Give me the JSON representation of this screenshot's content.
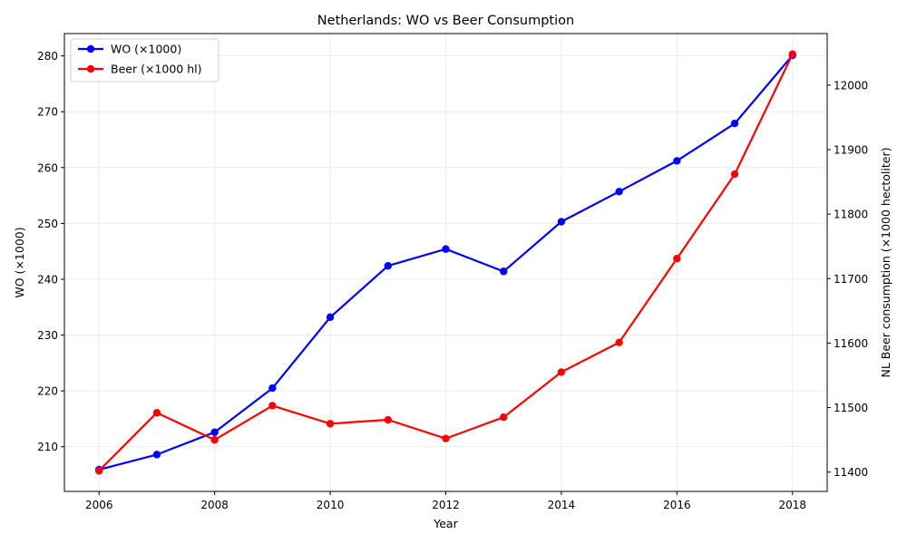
{
  "chart_data": {
    "type": "line",
    "title": "Netherlands: WO vs Beer Consumption",
    "xlabel": "Year",
    "ylabel_left": "WO (×1000)",
    "ylabel_right": "NL Beer consumption (×1000 hectoliter)",
    "xlim": [
      2005.4,
      2018.6
    ],
    "ylim_left": [
      202,
      284
    ],
    "ylim_right": [
      11370,
      12080
    ],
    "x_ticks": [
      2006,
      2008,
      2010,
      2012,
      2014,
      2016,
      2018
    ],
    "y_ticks_left": [
      210,
      220,
      230,
      240,
      250,
      260,
      270,
      280
    ],
    "y_ticks_right": [
      11400,
      11500,
      11600,
      11700,
      11800,
      11900,
      12000
    ],
    "grid": true,
    "legend_position": "top-left",
    "x": [
      2006,
      2007,
      2008,
      2009,
      2010,
      2011,
      2012,
      2013,
      2014,
      2015,
      2016,
      2017,
      2018
    ],
    "series": [
      {
        "name": "WO (×1000)",
        "axis": "left",
        "color": "#0000ff",
        "values": [
          205.9,
          208.6,
          212.6,
          220.5,
          233.2,
          242.4,
          245.4,
          241.4,
          250.3,
          255.7,
          261.2,
          267.9,
          280.1
        ]
      },
      {
        "name": "Beer (×1000 hl)",
        "axis": "right",
        "color": "#ff0000",
        "values": [
          11402,
          11492,
          11450,
          11503,
          11475,
          11481,
          11452,
          11485,
          11555,
          11601,
          11731,
          11862,
          12048
        ]
      }
    ]
  }
}
